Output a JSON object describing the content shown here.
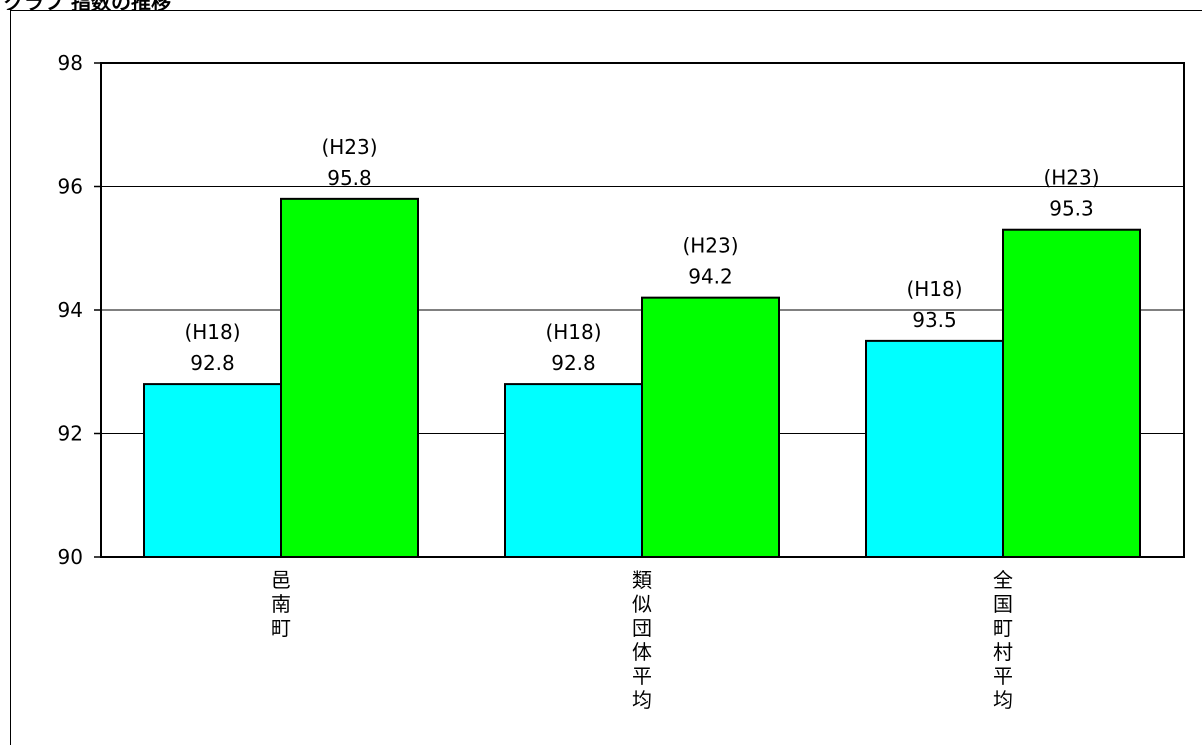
{
  "header": {
    "title": "グラフ 指数の推移"
  },
  "chart_data": {
    "type": "bar",
    "categories": [
      "邑南町",
      "類似団体平均",
      "全国町村平均"
    ],
    "series": [
      {
        "name": "H18",
        "label": "(H18)",
        "values": [
          92.8,
          92.8,
          93.5
        ]
      },
      {
        "name": "H23",
        "label": "(H23)",
        "values": [
          95.8,
          94.2,
          95.3
        ]
      }
    ],
    "ylim": [
      90,
      98
    ],
    "yticks": [
      90,
      92,
      94,
      96,
      98
    ],
    "grid": true,
    "colors": {
      "H18": "#00ffff",
      "H23": "#00ff00",
      "border": "#000000",
      "grid": "#000000"
    }
  }
}
